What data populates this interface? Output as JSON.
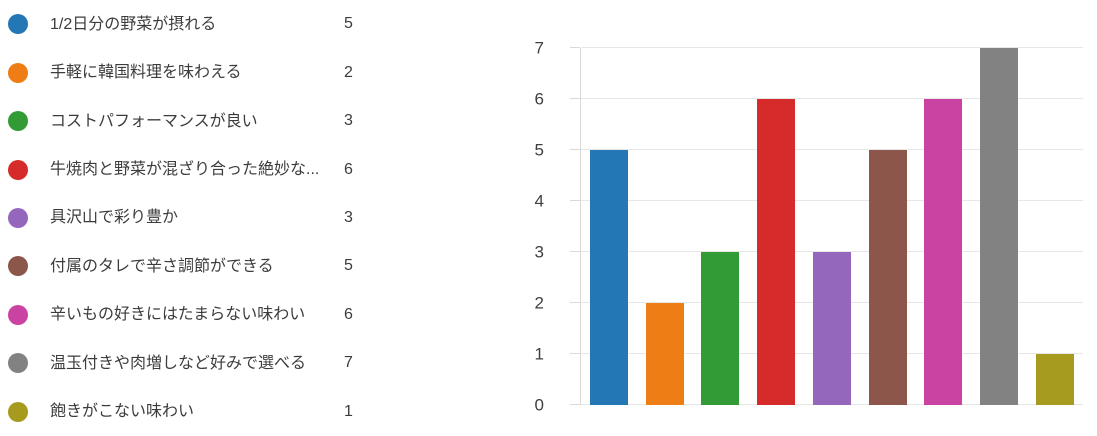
{
  "legend": {
    "items": [
      {
        "label": "1/2日分の野菜が摂れる",
        "value": 5,
        "color": "#2377b4"
      },
      {
        "label": "手軽に韓国料理を味わえる",
        "value": 2,
        "color": "#ed7d14"
      },
      {
        "label": "コストパフォーマンスが良い",
        "value": 3,
        "color": "#339b35"
      },
      {
        "label": "牛焼肉と野菜が混ざり合った絶妙な...",
        "value": 6,
        "color": "#d62b2b"
      },
      {
        "label": "具沢山で彩り豊か",
        "value": 3,
        "color": "#9467bd"
      },
      {
        "label": "付属のタレで辛さ調節ができる",
        "value": 5,
        "color": "#8c564b"
      },
      {
        "label": "辛いもの好きにはたまらない味わい",
        "value": 6,
        "color": "#ca43a3"
      },
      {
        "label": "温玉付きや肉増しなど好みで選べる",
        "value": 7,
        "color": "#828282"
      },
      {
        "label": "飽きがこない味わい",
        "value": 1,
        "color": "#a69a1f"
      }
    ]
  },
  "chart_data": {
    "type": "bar",
    "categories": [
      "1/2日分の野菜が摂れる",
      "手軽に韓国料理を味わえる",
      "コストパフォーマンスが良い",
      "牛焼肉と野菜が混ざり合った絶妙な...",
      "具沢山で彩り豊か",
      "付属のタレで辛さ調節ができる",
      "辛いもの好きにはたまらない味わい",
      "温玉付きや肉増しなど好みで選べる",
      "飽きがこない味わい"
    ],
    "values": [
      5,
      2,
      3,
      6,
      3,
      5,
      6,
      7,
      1
    ],
    "colors": [
      "#2377b4",
      "#ed7d14",
      "#339b35",
      "#d62b2b",
      "#9467bd",
      "#8c564b",
      "#ca43a3",
      "#828282",
      "#a69a1f"
    ],
    "title": "",
    "xlabel": "",
    "ylabel": "",
    "ylim": [
      0,
      7
    ],
    "yticks": [
      0,
      1,
      2,
      3,
      4,
      5,
      6,
      7
    ],
    "grid": true,
    "x_tick_labels_visible": false,
    "legend_position": "left"
  },
  "theme": {
    "background": "#ffffff",
    "text": "#3c3c3c",
    "axis_text": "#3f3f3f",
    "gridline": "#e7e7e7",
    "axis_line": "#d9d9d9"
  }
}
